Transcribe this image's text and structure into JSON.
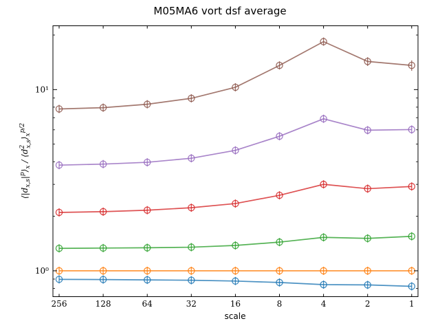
{
  "chart_data": {
    "type": "line",
    "title": "M05MA6 vort dsf average",
    "xlabel": "scale",
    "ylabel": "⟨|d",
    "ylabel_full": "⟨|dx,s|p⟩x / ⟨d²x,s⟩x^(p/2)",
    "x_categories": [
      "256",
      "128",
      "64",
      "32",
      "16",
      "8",
      "4",
      "2",
      "1"
    ],
    "y_scale": "log",
    "ylim": [
      0.72,
      22.5
    ],
    "y_ticks": [
      {
        "value": 1,
        "label": "10⁰"
      },
      {
        "value": 10,
        "label": "10¹"
      }
    ],
    "grid": false,
    "legend": "none",
    "series": [
      {
        "color": "#1f77b4",
        "values": [
          0.897,
          0.895,
          0.891,
          0.887,
          0.878,
          0.862,
          0.839,
          0.836,
          0.821
        ],
        "errors": [
          0.012,
          0.012,
          0.012,
          0.012,
          0.012,
          0.012,
          0.012,
          0.012,
          0.012
        ]
      },
      {
        "color": "#ff7f0e",
        "values": [
          1.0,
          1.0,
          1.0,
          1.0,
          1.0,
          1.0,
          1.0,
          1.0,
          1.0
        ],
        "errors": [
          0.0,
          0.0,
          0.0,
          0.0,
          0.0,
          0.0,
          0.0,
          0.0,
          0.0
        ]
      },
      {
        "color": "#2ca02c",
        "values": [
          1.33,
          1.335,
          1.34,
          1.35,
          1.38,
          1.44,
          1.53,
          1.51,
          1.55
        ],
        "errors": [
          0.03,
          0.03,
          0.03,
          0.03,
          0.03,
          0.03,
          0.04,
          0.04,
          0.04
        ]
      },
      {
        "color": "#d62728",
        "values": [
          2.1,
          2.12,
          2.16,
          2.23,
          2.35,
          2.61,
          3.0,
          2.84,
          2.92
        ],
        "errors": [
          0.06,
          0.06,
          0.06,
          0.07,
          0.07,
          0.08,
          0.1,
          0.1,
          0.1
        ]
      },
      {
        "color": "#9467bd",
        "values": [
          3.83,
          3.88,
          3.97,
          4.18,
          4.62,
          5.53,
          6.9,
          5.97,
          6.02
        ],
        "errors": [
          0.12,
          0.12,
          0.13,
          0.14,
          0.15,
          0.2,
          0.25,
          0.25,
          0.3
        ]
      },
      {
        "color": "#8c564b",
        "values": [
          7.82,
          7.95,
          8.3,
          8.95,
          10.3,
          13.6,
          18.4,
          14.3,
          13.6
        ],
        "errors": [
          0.3,
          0.3,
          0.32,
          0.35,
          0.45,
          0.6,
          0.9,
          0.8,
          0.9
        ]
      }
    ]
  }
}
